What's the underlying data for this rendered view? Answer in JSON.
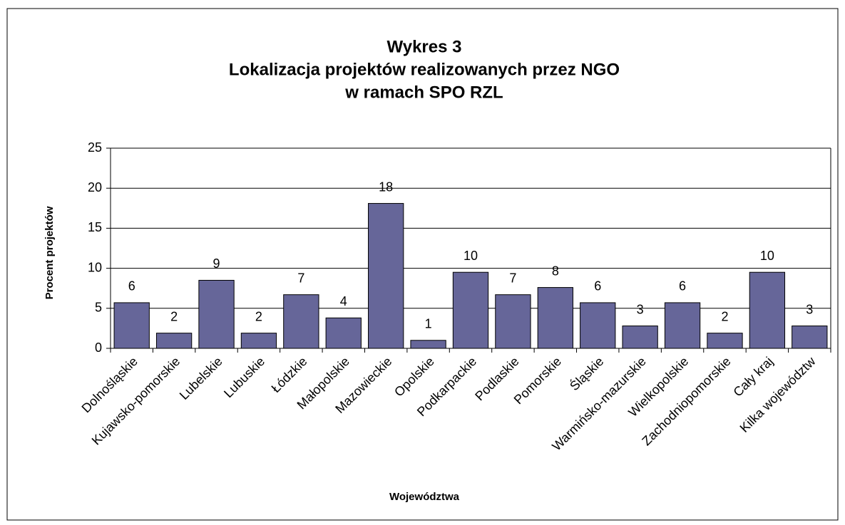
{
  "chart_data": {
    "type": "bar",
    "title": [
      "Wykres 3",
      "Lokalizacja projektów realizowanych przez NGO",
      "w ramach SPO RZL"
    ],
    "x_label": "Województwa",
    "y_label": "Procent projektów",
    "categories": [
      "Dolnośląskie",
      "Kujawsko-pomorskie",
      "Lubelskie",
      "Lubuskie",
      "Łódzkie",
      "Małopolskie",
      "Mazowieckie",
      "Opolskie",
      "Podkarpackie",
      "Podlaskie",
      "Pomorskie",
      "Śląskie",
      "Warmińsko-mazurskie",
      "Wielkopolskie",
      "Zachodniopomorskie",
      "Cały kraj",
      "Kilka województw"
    ],
    "values": [
      5.7,
      1.9,
      8.5,
      1.9,
      6.7,
      3.8,
      18.1,
      1.0,
      9.5,
      6.7,
      7.6,
      5.7,
      2.8,
      5.7,
      1.9,
      9.5,
      2.8
    ],
    "value_labels": [
      "6",
      "2",
      "9",
      "2",
      "7",
      "4",
      "18",
      "1",
      "10",
      "7",
      "8",
      "6",
      "3",
      "6",
      "2",
      "10",
      "3"
    ],
    "color": "#666699",
    "ylim": [
      0,
      25
    ],
    "yticks": [
      0,
      5,
      10,
      15,
      20,
      25
    ],
    "grid": true
  }
}
